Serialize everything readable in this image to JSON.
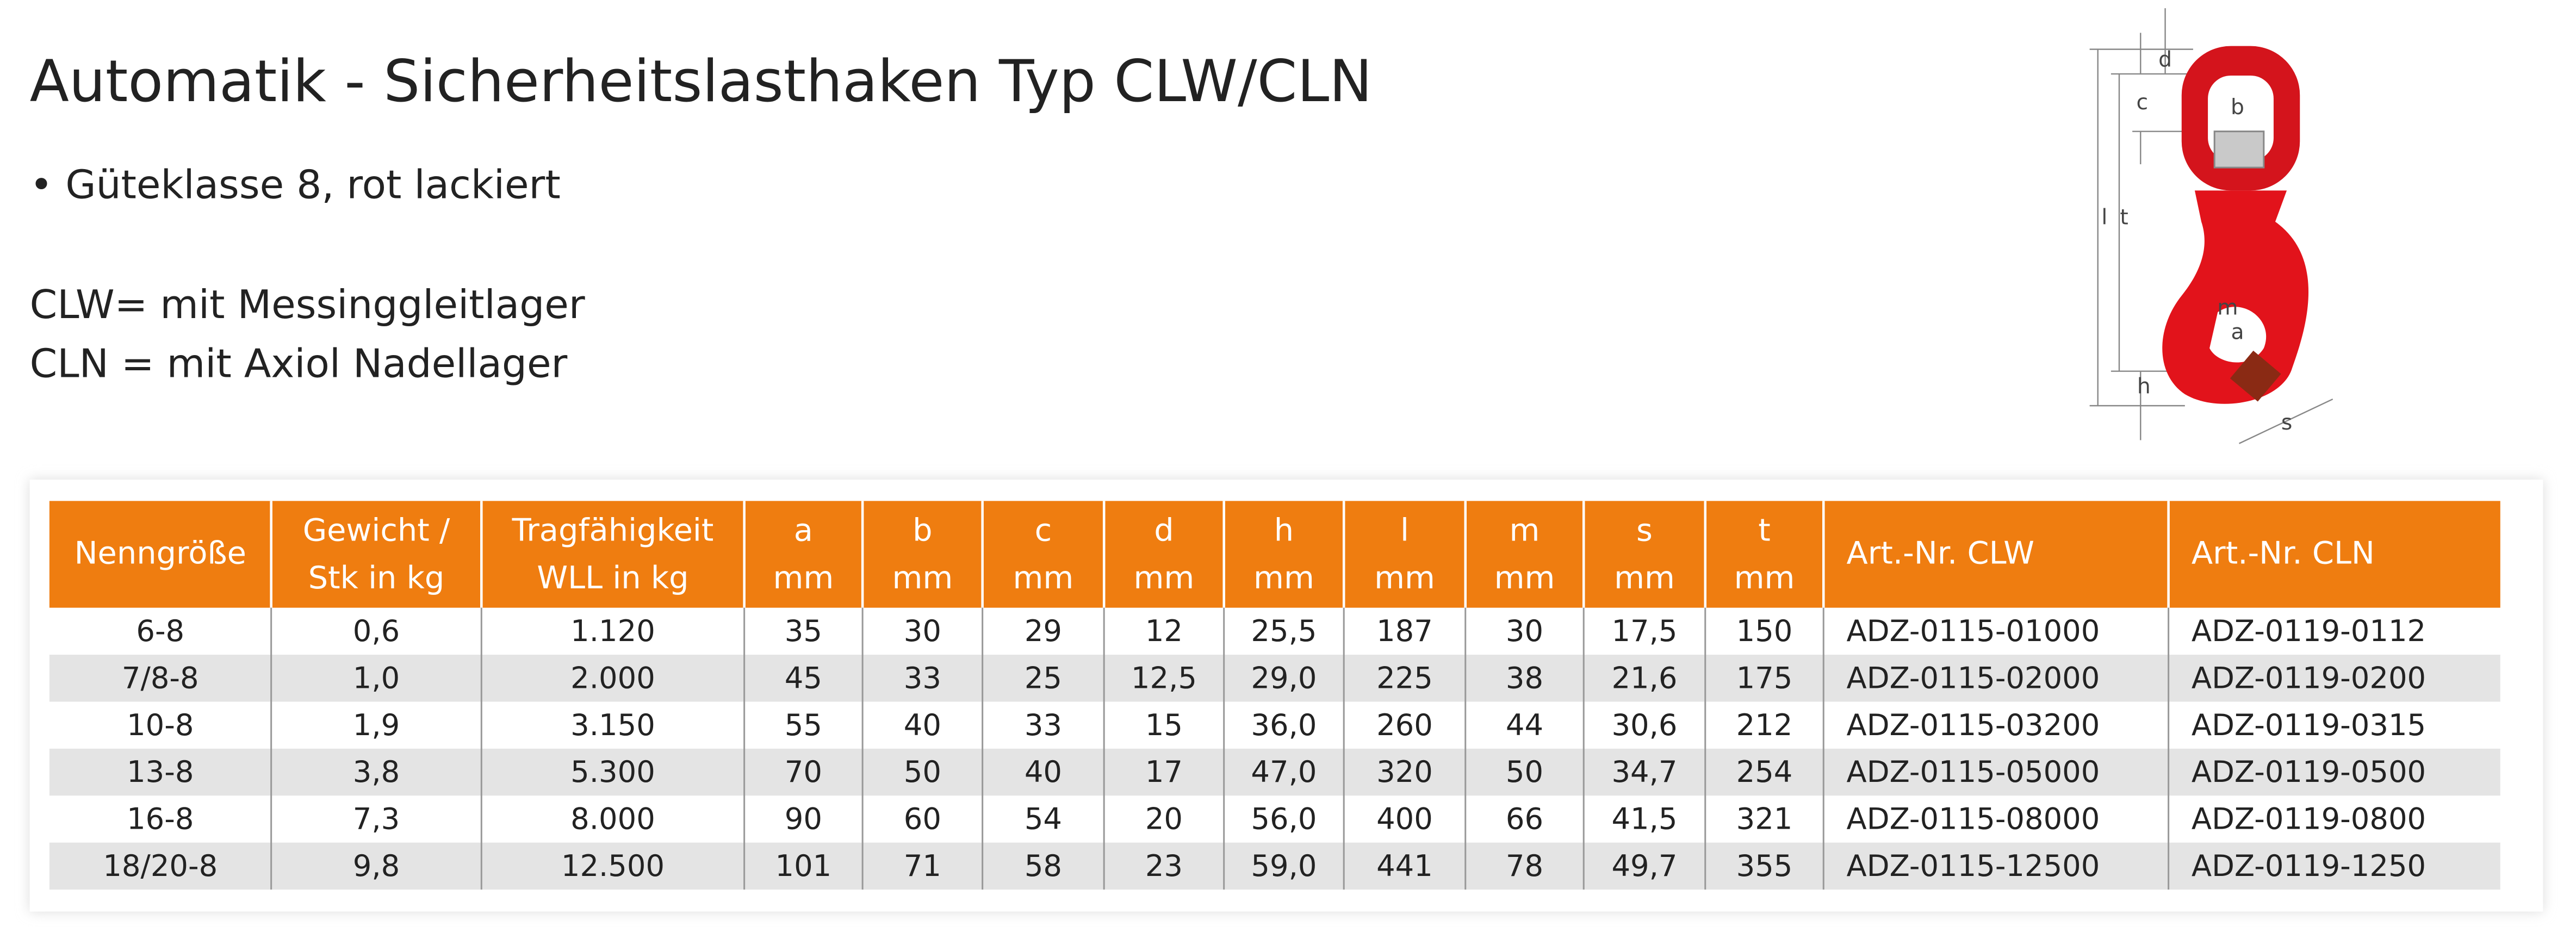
{
  "header": {
    "title": "Automatik - Sicherheitslasthaken Typ CLW/CLN",
    "bullet": "• Güteklasse 8, rot lackiert",
    "notes": [
      "CLW= mit Messinggleitlager",
      "CLN = mit Axiol Nadellager"
    ]
  },
  "diagram": {
    "labels": [
      "d",
      "b",
      "c",
      "l",
      "t",
      "m",
      "a",
      "h",
      "s"
    ]
  },
  "table": {
    "header": [
      [
        "Nenngröße"
      ],
      [
        "Gewicht /",
        "Stk in kg"
      ],
      [
        "Tragfähigkeit",
        "WLL  in kg"
      ],
      [
        "a",
        "mm"
      ],
      [
        "b",
        "mm"
      ],
      [
        "c",
        "mm"
      ],
      [
        "d",
        "mm"
      ],
      [
        "h",
        "mm"
      ],
      [
        "l",
        "mm"
      ],
      [
        "m",
        "mm"
      ],
      [
        "s",
        "mm"
      ],
      [
        "t",
        "mm"
      ],
      [
        "Art.-Nr. CLW"
      ],
      [
        "Art.-Nr. CLN"
      ]
    ],
    "rows": [
      [
        "6-8",
        "0,6",
        "1.120",
        "35",
        "30",
        "29",
        "12",
        "25,5",
        "187",
        "30",
        "17,5",
        "150",
        "ADZ-0115-01000",
        "ADZ-0119-0112"
      ],
      [
        "7/8-8",
        "1,0",
        "2.000",
        "45",
        "33",
        "25",
        "12,5",
        "29,0",
        "225",
        "38",
        "21,6",
        "175",
        "ADZ-0115-02000",
        "ADZ-0119-0200"
      ],
      [
        "10-8",
        "1,9",
        "3.150",
        "55",
        "40",
        "33",
        "15",
        "36,0",
        "260",
        "44",
        "30,6",
        "212",
        "ADZ-0115-03200",
        "ADZ-0119-0315"
      ],
      [
        "13-8",
        "3,8",
        "5.300",
        "70",
        "50",
        "40",
        "17",
        "47,0",
        "320",
        "50",
        "34,7",
        "254",
        "ADZ-0115-05000",
        "ADZ-0119-0500"
      ],
      [
        "16-8",
        "7,3",
        "8.000",
        "90",
        "60",
        "54",
        "20",
        "56,0",
        "400",
        "66",
        "41,5",
        "321",
        "ADZ-0115-08000",
        "ADZ-0119-0800"
      ],
      [
        "18/20-8",
        "9,8",
        "12.500",
        "101",
        "71",
        "58",
        "23",
        "59,0",
        "441",
        "78",
        "49,7",
        "355",
        "ADZ-0115-12500",
        "ADZ-0119-1250"
      ]
    ]
  }
}
